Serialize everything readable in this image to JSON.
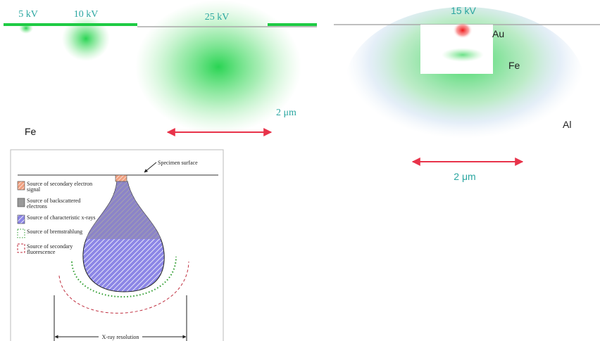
{
  "left_panel": {
    "energies": [
      "5 kV",
      "10 kV",
      "25 kV"
    ],
    "scale": "2 μm",
    "material": "Fe"
  },
  "right_panel": {
    "energy": "15 kV",
    "layers": [
      "Au",
      "Fe",
      "Al"
    ],
    "scale": "2 μm"
  },
  "inset": {
    "surface_label": "Specimen surface",
    "legend": [
      "Source of secondary electron signal",
      "Source of backscattered electrons",
      "Source of characteristic x-rays",
      "Source of bremstrahlung",
      "Source of secondary fluorescence"
    ],
    "resolution_label": "X-ray resolution"
  }
}
